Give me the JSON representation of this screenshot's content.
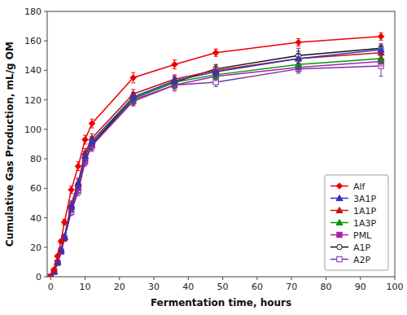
{
  "chart_data": {
    "type": "line",
    "x_label": "Fermentation time, hours",
    "y_label": "Cumulative Gas Production, mL/g OM",
    "x": [
      0,
      1,
      2,
      3,
      4,
      6,
      8,
      10,
      12,
      24,
      36,
      48,
      72,
      96
    ],
    "series": [
      {
        "name": "Alf",
        "color": "#EE0000",
        "marker": "diamond",
        "values": [
          0,
          5,
          14,
          24,
          37,
          59,
          75,
          93,
          104,
          135,
          144,
          152,
          159,
          163
        ],
        "errors": [
          0,
          0.5,
          1,
          1.5,
          2,
          2.5,
          3,
          3,
          3,
          3.5,
          3,
          2.5,
          2.5,
          2.5
        ]
      },
      {
        "name": "3A1P",
        "color": "#3333BB",
        "marker": "triangle",
        "values": [
          0,
          3.5,
          10,
          18,
          27,
          48,
          63,
          82,
          92,
          122,
          133,
          139,
          148,
          154
        ],
        "errors": [
          0,
          0.5,
          1,
          1.5,
          2,
          2.5,
          3,
          3,
          3,
          3,
          3,
          3,
          7,
          3
        ]
      },
      {
        "name": "1A1P",
        "color": "#CC1111",
        "marker": "triangle",
        "values": [
          0,
          3.5,
          10,
          18,
          27,
          49,
          64,
          84,
          94,
          124,
          134,
          140,
          148,
          152
        ],
        "errors": [
          0,
          0.5,
          1,
          1.5,
          2,
          2.5,
          3,
          3,
          3,
          3,
          3,
          3,
          3,
          4
        ]
      },
      {
        "name": "1A3P",
        "color": "#009900",
        "marker": "triangle",
        "values": [
          0,
          3.5,
          10,
          18,
          27,
          48,
          63,
          82,
          92,
          121,
          132,
          137,
          144,
          148
        ],
        "errors": [
          0,
          0.5,
          1,
          1.5,
          2,
          2.5,
          3,
          3,
          3,
          3,
          3,
          3,
          3,
          3
        ]
      },
      {
        "name": "PML",
        "color": "#AA22AA",
        "marker": "square",
        "values": [
          0,
          3.5,
          9.5,
          17,
          26,
          46,
          60,
          79,
          89,
          119,
          130,
          136,
          142,
          146
        ],
        "errors": [
          0,
          0.5,
          1,
          1.5,
          2,
          2.5,
          3,
          3,
          3,
          3,
          3,
          3,
          3,
          3
        ]
      },
      {
        "name": "A1P",
        "color": "#111111",
        "marker": "circle-open",
        "values": [
          0,
          3.5,
          9.5,
          17,
          26,
          46,
          60,
          79,
          90,
          121,
          132,
          141,
          150,
          155
        ],
        "errors": [
          0,
          0.5,
          1,
          1.5,
          2,
          2.5,
          3,
          3,
          4,
          4,
          4,
          3,
          3,
          3
        ]
      },
      {
        "name": "A2P",
        "color": "#7733AA",
        "marker": "square-open",
        "values": [
          0,
          3.5,
          9.5,
          17,
          26,
          44,
          58,
          78,
          89,
          120,
          130,
          132,
          141,
          143
        ],
        "errors": [
          0,
          0.5,
          1,
          1.5,
          2,
          2.5,
          3,
          3,
          4,
          4,
          4,
          3,
          3,
          7
        ]
      }
    ],
    "xlim": [
      -1,
      100
    ],
    "ylim": [
      0,
      180
    ],
    "xticks": [
      0,
      10,
      20,
      30,
      40,
      50,
      60,
      70,
      80,
      90,
      100
    ],
    "yticks": [
      0,
      20,
      40,
      60,
      80,
      100,
      120,
      140,
      160,
      180
    ],
    "grid": false,
    "legend": "lower right"
  }
}
